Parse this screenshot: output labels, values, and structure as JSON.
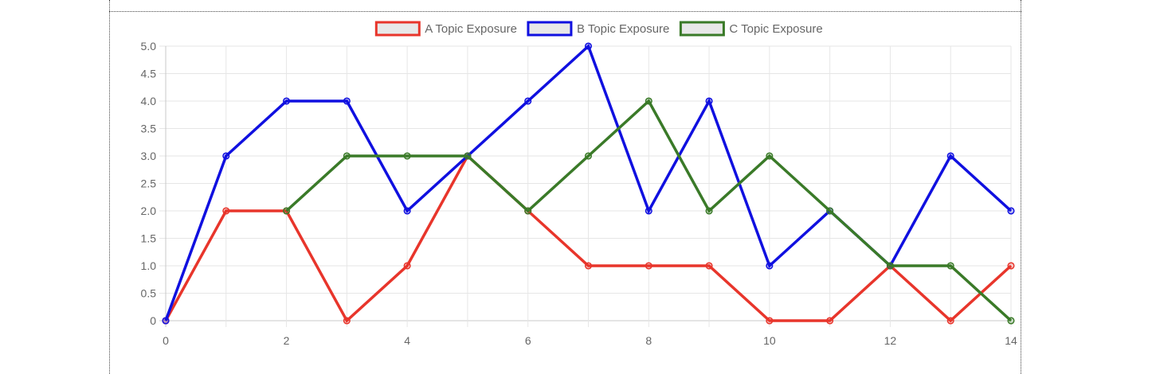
{
  "chart_data": {
    "type": "line",
    "title": "",
    "xlabel": "",
    "ylabel": "",
    "x": [
      0,
      1,
      2,
      3,
      4,
      5,
      6,
      7,
      8,
      9,
      10,
      11,
      12,
      13,
      14
    ],
    "xlim": [
      0,
      14
    ],
    "ylim": [
      0,
      5
    ],
    "x_ticks": [
      "0",
      "2",
      "4",
      "6",
      "8",
      "10",
      "12",
      "14"
    ],
    "y_ticks": [
      "0",
      "0.5",
      "1.0",
      "1.5",
      "2.0",
      "2.5",
      "3.0",
      "3.5",
      "4.0",
      "4.5",
      "5.0"
    ],
    "grid": true,
    "legend_position": "top",
    "series": [
      {
        "name": "A Topic Exposure",
        "color": "#e8352b",
        "values": [
          0,
          2,
          2,
          0,
          1,
          3,
          2,
          1,
          1,
          1,
          0,
          0,
          1,
          0,
          1
        ]
      },
      {
        "name": "B Topic Exposure",
        "color": "#1010e0",
        "values": [
          0,
          3,
          4,
          4,
          2,
          3,
          4,
          5,
          2,
          4,
          1,
          2,
          1,
          3,
          2
        ]
      },
      {
        "name": "C Topic Exposure",
        "color": "#3a7a28",
        "values": [
          null,
          null,
          2,
          3,
          3,
          3,
          2,
          3,
          4,
          2,
          3,
          2,
          1,
          1,
          0
        ]
      }
    ]
  }
}
